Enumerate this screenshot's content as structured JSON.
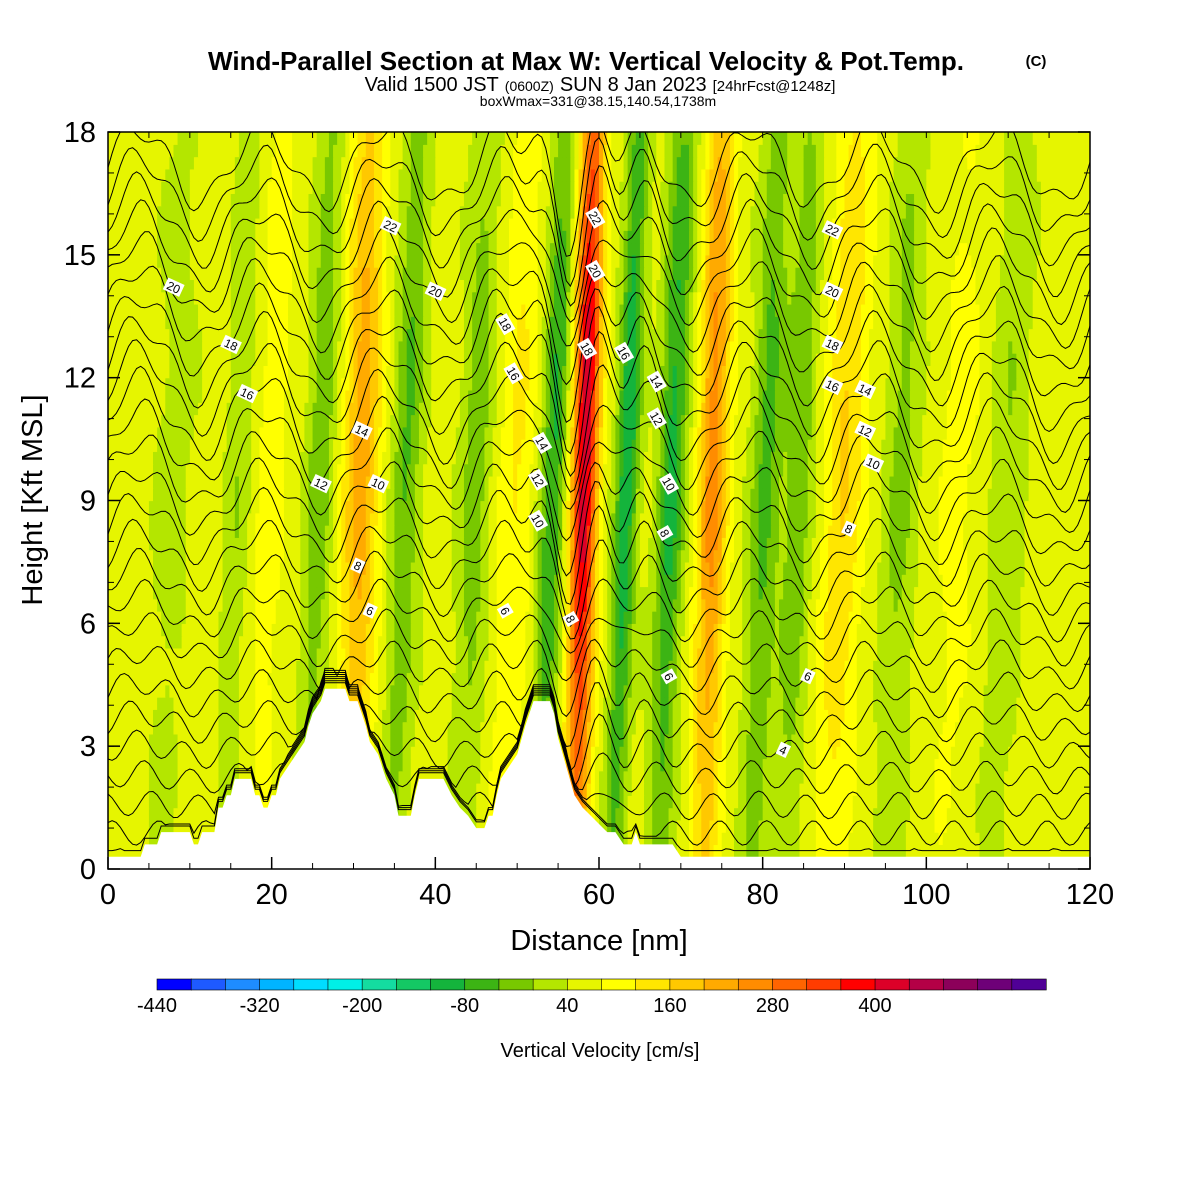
{
  "header": {
    "title_main": "Wind-Parallel Section at Max W: Vertical Velocity & Pot.Temp.",
    "title_mark": "(C)",
    "valid_prefix": "Valid 1500 JST",
    "valid_utc": "(0600Z)",
    "valid_date": "SUN 8 Jan 2023",
    "valid_fcst": "[24hrFcst@1248z]",
    "box_info": "boxWmax=331@38.15,140.54,1738m"
  },
  "chart_data": {
    "type": "heatmap",
    "xlabel": "Distance [nm]",
    "ylabel": "Height [Kft MSL]",
    "xlim": [
      0,
      120
    ],
    "ylim": [
      0,
      18
    ],
    "x_ticks": [
      0,
      20,
      40,
      60,
      80,
      100,
      120
    ],
    "y_ticks": [
      0,
      3,
      6,
      9,
      12,
      15,
      18
    ],
    "legend": {
      "label": "Vertical Velocity [cm/s]",
      "placement": "bottom",
      "tick_labels": [
        -440,
        -320,
        -200,
        -80,
        40,
        160,
        280,
        400
      ],
      "colors": [
        "#0000ff",
        "#1e5aff",
        "#1e8cff",
        "#00b4ff",
        "#00dcff",
        "#00f0e6",
        "#14dca0",
        "#14c864",
        "#14b43c",
        "#3cb414",
        "#78c800",
        "#b4e600",
        "#e6f500",
        "#ffff00",
        "#ffe600",
        "#ffc800",
        "#ffaa00",
        "#ff8c00",
        "#ff6400",
        "#ff3c00",
        "#ff0000",
        "#dc0028",
        "#b40046",
        "#8c005a",
        "#6e0078",
        "#500096"
      ]
    },
    "w_bands": [
      {
        "x": 58.3,
        "w": 380,
        "width": 1.6
      },
      {
        "x": 74.0,
        "w": 210,
        "width": 1.8
      },
      {
        "x": 31.0,
        "w": 170,
        "width": 2.2
      },
      {
        "x": 90.0,
        "w": 110,
        "width": 2.4
      },
      {
        "x": 50.0,
        "w": 70,
        "width": 2.2
      },
      {
        "x": 20.0,
        "w": 50,
        "width": 2.0
      },
      {
        "x": 104.0,
        "w": 40,
        "width": 2.6
      },
      {
        "x": 63.5,
        "w": -170,
        "width": 1.4
      },
      {
        "x": 54.5,
        "w": -140,
        "width": 1.6
      },
      {
        "x": 69.0,
        "w": -150,
        "width": 1.7
      },
      {
        "x": 80.5,
        "w": -110,
        "width": 1.8
      },
      {
        "x": 26.0,
        "w": -90,
        "width": 1.7
      },
      {
        "x": 36.5,
        "w": -100,
        "width": 1.8
      },
      {
        "x": 45.0,
        "w": -80,
        "width": 1.9
      },
      {
        "x": 84.5,
        "w": -90,
        "width": 1.8
      },
      {
        "x": 16.0,
        "w": -50,
        "width": 1.6
      },
      {
        "x": 97.0,
        "w": -70,
        "width": 2.0
      },
      {
        "x": 110.0,
        "w": -50,
        "width": 2.2
      },
      {
        "x": 8.0,
        "w": -30,
        "width": 2.5
      }
    ],
    "terrain": [
      [
        0,
        0.3
      ],
      [
        4,
        0.3
      ],
      [
        4.5,
        0.6
      ],
      [
        6,
        0.6
      ],
      [
        6.5,
        0.9
      ],
      [
        10,
        0.9
      ],
      [
        10.5,
        0.6
      ],
      [
        11,
        0.6
      ],
      [
        11.5,
        0.9
      ],
      [
        13,
        0.9
      ],
      [
        13.5,
        1.5
      ],
      [
        14,
        1.5
      ],
      [
        14.5,
        1.8
      ],
      [
        15,
        1.8
      ],
      [
        15.5,
        2.2
      ],
      [
        17.5,
        2.2
      ],
      [
        18,
        1.8
      ],
      [
        18.5,
        1.8
      ],
      [
        19,
        1.5
      ],
      [
        19.5,
        1.5
      ],
      [
        20,
        1.8
      ],
      [
        20.5,
        1.8
      ],
      [
        21,
        2.2
      ],
      [
        22,
        2.5
      ],
      [
        23,
        2.8
      ],
      [
        24,
        3.1
      ],
      [
        24.5,
        3.5
      ],
      [
        25,
        3.8
      ],
      [
        26,
        4.1
      ],
      [
        26.5,
        4.4
      ],
      [
        29,
        4.4
      ],
      [
        29.5,
        4.1
      ],
      [
        30.5,
        4.1
      ],
      [
        31,
        3.8
      ],
      [
        31.5,
        3.5
      ],
      [
        32,
        3.1
      ],
      [
        33,
        2.8
      ],
      [
        33.5,
        2.5
      ],
      [
        34,
        2.2
      ],
      [
        35,
        1.8
      ],
      [
        35.5,
        1.3
      ],
      [
        37,
        1.3
      ],
      [
        37.5,
        1.8
      ],
      [
        38,
        2.2
      ],
      [
        39,
        2.2
      ],
      [
        39.5,
        2.2
      ],
      [
        41,
        2.2
      ],
      [
        42,
        1.8
      ],
      [
        43,
        1.5
      ],
      [
        44,
        1.3
      ],
      [
        45,
        1.0
      ],
      [
        46,
        1.0
      ],
      [
        46.5,
        1.3
      ],
      [
        47,
        1.3
      ],
      [
        47.5,
        1.8
      ],
      [
        48,
        2.2
      ],
      [
        49,
        2.5
      ],
      [
        50,
        2.8
      ],
      [
        51,
        3.5
      ],
      [
        52,
        4.1
      ],
      [
        54,
        4.1
      ],
      [
        54.5,
        3.8
      ],
      [
        55,
        3.2
      ],
      [
        56,
        2.5
      ],
      [
        57,
        1.8
      ],
      [
        58,
        1.5
      ],
      [
        59,
        1.3
      ],
      [
        60,
        1.1
      ],
      [
        61,
        0.9
      ],
      [
        62,
        0.9
      ],
      [
        63,
        0.6
      ],
      [
        64,
        0.6
      ],
      [
        64.5,
        0.9
      ],
      [
        65,
        0.6
      ],
      [
        69,
        0.6
      ],
      [
        70,
        0.3
      ],
      [
        120,
        0.3
      ]
    ],
    "isentropes": {
      "base": -2,
      "step": 1,
      "count": 26
    },
    "theta_labels": [
      {
        "x": 8,
        "y": 14.2,
        "text": "20"
      },
      {
        "x": 15,
        "y": 12.8,
        "text": "18"
      },
      {
        "x": 17,
        "y": 11.6,
        "text": "16"
      },
      {
        "x": 34.5,
        "y": 15.7,
        "text": "22"
      },
      {
        "x": 40,
        "y": 14.1,
        "text": "20"
      },
      {
        "x": 48.5,
        "y": 13.3,
        "text": "18"
      },
      {
        "x": 49.5,
        "y": 12.1,
        "text": "16"
      },
      {
        "x": 31,
        "y": 10.7,
        "text": "14"
      },
      {
        "x": 26,
        "y": 9.4,
        "text": "12"
      },
      {
        "x": 33,
        "y": 9.4,
        "text": "10"
      },
      {
        "x": 30.5,
        "y": 7.4,
        "text": "8"
      },
      {
        "x": 32,
        "y": 6.3,
        "text": "6"
      },
      {
        "x": 53,
        "y": 10.4,
        "text": "14"
      },
      {
        "x": 52.5,
        "y": 9.5,
        "text": "12"
      },
      {
        "x": 52.5,
        "y": 8.5,
        "text": "10"
      },
      {
        "x": 56.5,
        "y": 6.1,
        "text": "8"
      },
      {
        "x": 48.5,
        "y": 6.3,
        "text": "6"
      },
      {
        "x": 59.5,
        "y": 15.9,
        "text": "22"
      },
      {
        "x": 59.5,
        "y": 14.6,
        "text": "20"
      },
      {
        "x": 58.5,
        "y": 12.7,
        "text": "18"
      },
      {
        "x": 63,
        "y": 12.6,
        "text": "16"
      },
      {
        "x": 67,
        "y": 11.9,
        "text": "14"
      },
      {
        "x": 67,
        "y": 11.0,
        "text": "12"
      },
      {
        "x": 68.5,
        "y": 9.4,
        "text": "10"
      },
      {
        "x": 68,
        "y": 8.2,
        "text": "8"
      },
      {
        "x": 68.5,
        "y": 4.7,
        "text": "6"
      },
      {
        "x": 88.5,
        "y": 15.6,
        "text": "22"
      },
      {
        "x": 88.5,
        "y": 14.1,
        "text": "20"
      },
      {
        "x": 88.5,
        "y": 12.8,
        "text": "18"
      },
      {
        "x": 88.5,
        "y": 11.8,
        "text": "16"
      },
      {
        "x": 92.5,
        "y": 11.7,
        "text": "14"
      },
      {
        "x": 92.5,
        "y": 10.7,
        "text": "12"
      },
      {
        "x": 93.5,
        "y": 9.9,
        "text": "10"
      },
      {
        "x": 90.5,
        "y": 8.3,
        "text": "8"
      },
      {
        "x": 85.5,
        "y": 4.7,
        "text": "6"
      },
      {
        "x": 82.5,
        "y": 2.9,
        "text": "4"
      }
    ]
  }
}
